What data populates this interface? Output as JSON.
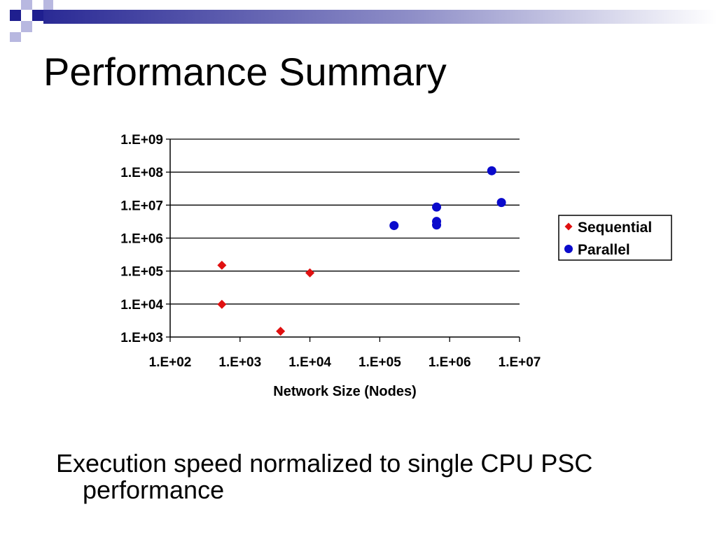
{
  "slide": {
    "title": "Performance Summary",
    "caption_line1": "Execution speed normalized to single CPU PSC",
    "caption_line2": "performance",
    "accent_color": "#1f1f8f",
    "accent_light": "#b8b8e0"
  },
  "chart_data": {
    "type": "scatter",
    "title": "",
    "xlabel": "Network Size (Nodes)",
    "ylabel": "",
    "x_scale": "log",
    "y_scale": "log",
    "xlim": [
      100,
      10000000
    ],
    "ylim": [
      1000,
      1000000000
    ],
    "x_tick_labels": [
      "1.E+02",
      "1.E+03",
      "1.E+04",
      "1.E+05",
      "1.E+06",
      "1.E+07"
    ],
    "y_tick_labels": [
      "1.E+03",
      "1.E+04",
      "1.E+05",
      "1.E+06",
      "1.E+07",
      "1.E+08",
      "1.E+09"
    ],
    "grid": "horizontal",
    "legend_position": "right",
    "series": [
      {
        "name": "Sequential",
        "marker": "diamond",
        "color": "#e01010",
        "points": [
          {
            "x": 550,
            "y": 150000
          },
          {
            "x": 550,
            "y": 9800
          },
          {
            "x": 3800,
            "y": 1500
          },
          {
            "x": 10000,
            "y": 88000
          }
        ]
      },
      {
        "name": "Parallel",
        "marker": "circle",
        "color": "#0a0acc",
        "points": [
          {
            "x": 160000,
            "y": 2400000
          },
          {
            "x": 650000,
            "y": 8700000
          },
          {
            "x": 650000,
            "y": 3200000
          },
          {
            "x": 650000,
            "y": 2500000
          },
          {
            "x": 4000000,
            "y": 110000000
          },
          {
            "x": 5500000,
            "y": 12000000
          }
        ]
      }
    ]
  }
}
